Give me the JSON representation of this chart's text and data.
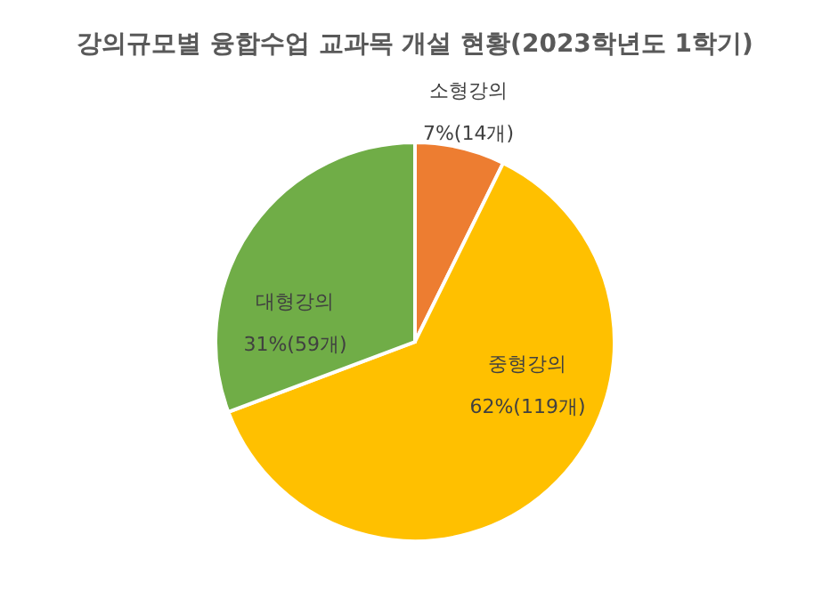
{
  "chart_data": {
    "type": "pie",
    "title": "강의규모별 융합수업 교과목 개설 현황(2023학년도 1학기)",
    "categories": [
      "소형강의",
      "중형강의",
      "대형강의"
    ],
    "values": [
      14,
      119,
      59
    ],
    "value_labels": [
      "7%(14개)",
      "62%(119개)",
      "31%(59개)"
    ],
    "colors": [
      "#ed7d31",
      "#ffc000",
      "#70ad47"
    ]
  }
}
